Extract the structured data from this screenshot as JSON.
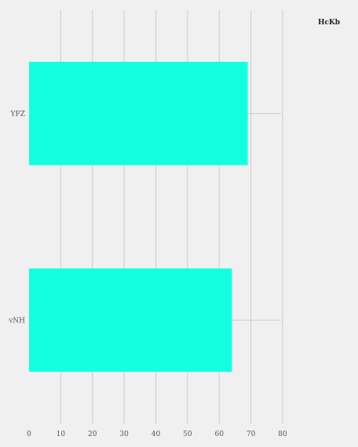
{
  "chart_data": {
    "type": "bar",
    "orientation": "horizontal",
    "categories": [
      "YFZ",
      "vNH"
    ],
    "series": [
      {
        "name": "HcKb",
        "values": [
          69,
          64
        ]
      }
    ],
    "xlim": [
      0,
      80
    ],
    "x_ticks": [
      "0",
      "10",
      "20",
      "30",
      "40",
      "50",
      "60",
      "70",
      "80"
    ],
    "grid": true,
    "legend": {
      "title": "HcKb",
      "position": "top-right"
    },
    "colors": {
      "bar": "#13ffe1",
      "grid": "#cbcbcb",
      "background": "#f0f0f0",
      "tick_text": "#4a5a66"
    }
  }
}
